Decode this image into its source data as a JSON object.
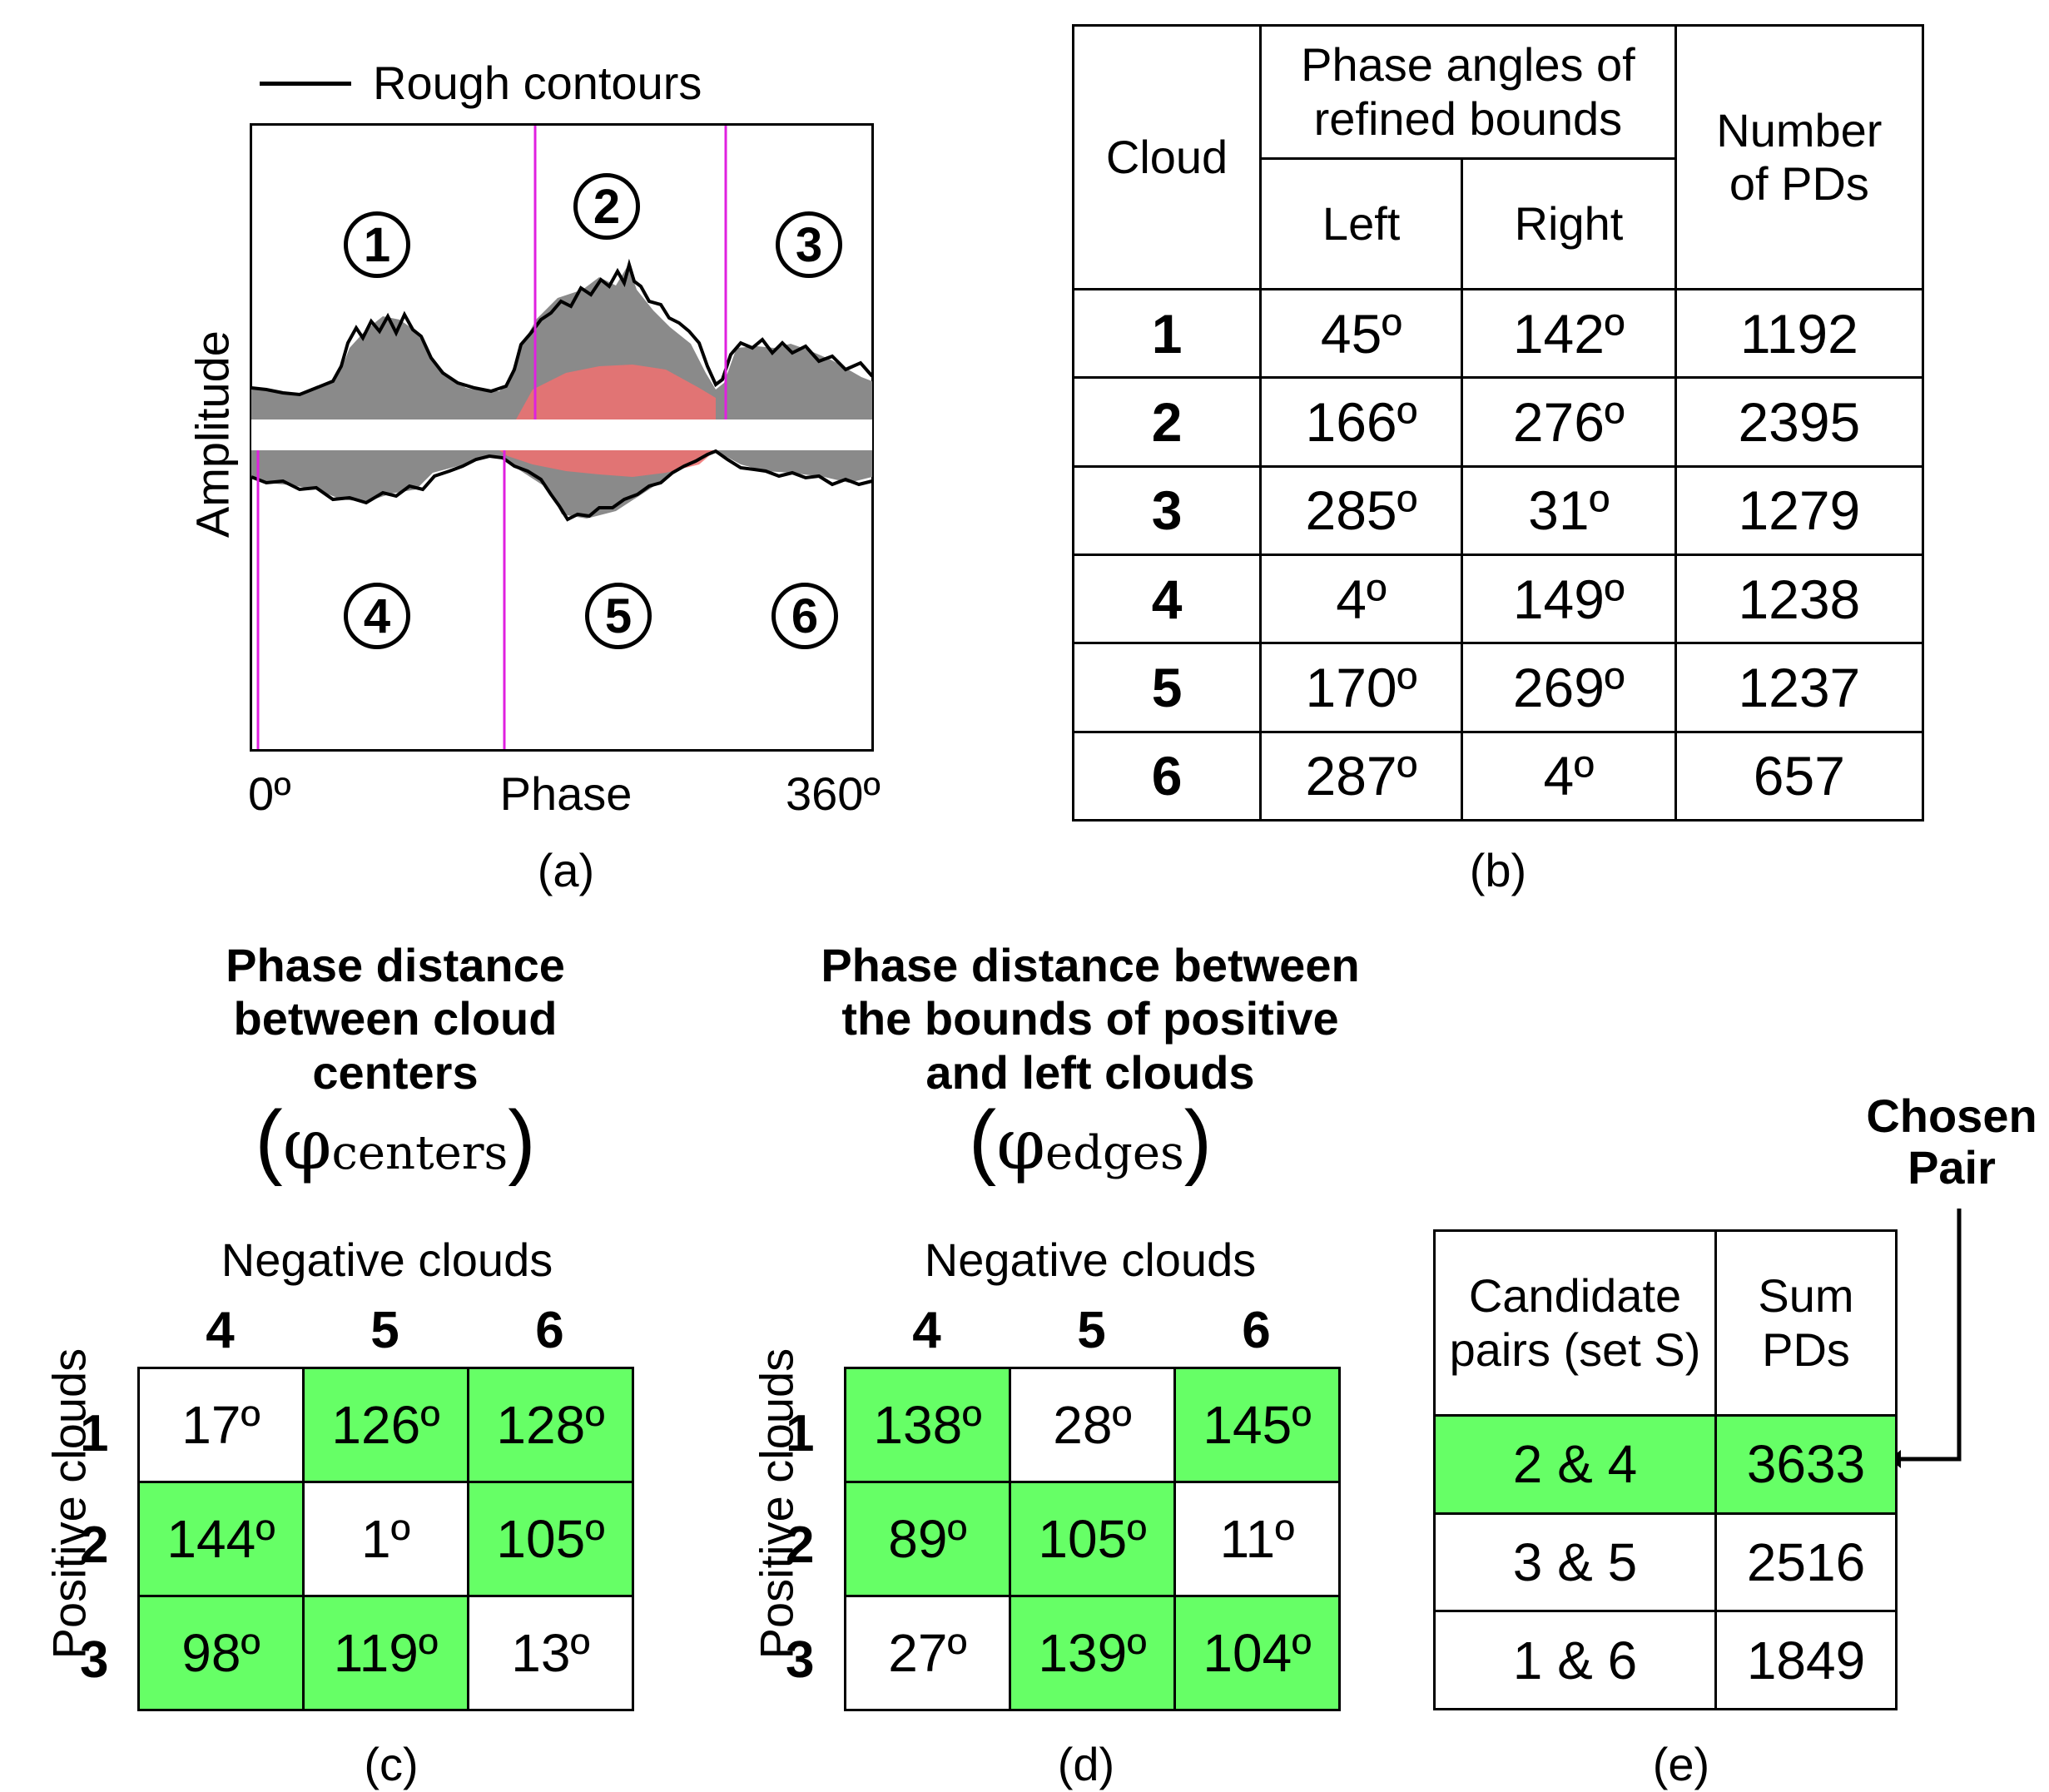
{
  "panel_a": {
    "legend_label": "Rough contours",
    "ylabel": "Amplitude",
    "xlabel": "Phase",
    "x_start": "0º",
    "x_end": "360º",
    "caption": "(a)",
    "cloud_numbers": [
      "1",
      "2",
      "3",
      "4",
      "5",
      "6"
    ]
  },
  "panel_b": {
    "caption": "(b)",
    "header_cloud": "Cloud",
    "header_phase": "Phase angles of refined bounds",
    "header_left": "Left",
    "header_right": "Right",
    "header_pds": "Number of PDs",
    "rows": [
      {
        "cloud": "1",
        "left": "45º",
        "right": "142º",
        "pds": "1192"
      },
      {
        "cloud": "2",
        "left": "166º",
        "right": "276º",
        "pds": "2395"
      },
      {
        "cloud": "3",
        "left": "285º",
        "right": "31º",
        "pds": "1279"
      },
      {
        "cloud": "4",
        "left": "4º",
        "right": "149º",
        "pds": "1238"
      },
      {
        "cloud": "5",
        "left": "170º",
        "right": "269º",
        "pds": "1237"
      },
      {
        "cloud": "6",
        "left": "287º",
        "right": "4º",
        "pds": "657"
      }
    ]
  },
  "panel_c": {
    "caption": "(c)",
    "title": "Phase distance between cloud centers",
    "phi": "φ",
    "phi_sub": "centers",
    "neg_label": "Negative clouds",
    "pos_label": "Positive clouds",
    "col_heads": [
      "4",
      "5",
      "6"
    ],
    "row_heads": [
      "1",
      "2",
      "3"
    ],
    "cells": [
      [
        "17º",
        "126º",
        "128º"
      ],
      [
        "144º",
        "1º",
        "105º"
      ],
      [
        "98º",
        "119º",
        "13º"
      ]
    ]
  },
  "panel_d": {
    "caption": "(d)",
    "title": "Phase distance between the bounds of positive and left clouds",
    "phi": "φ",
    "phi_sub": "edges",
    "neg_label": "Negative clouds",
    "pos_label": "Positive clouds",
    "col_heads": [
      "4",
      "5",
      "6"
    ],
    "row_heads": [
      "1",
      "2",
      "3"
    ],
    "cells": [
      [
        "138º",
        "28º",
        "145º"
      ],
      [
        "89º",
        "105º",
        "11º"
      ],
      [
        "27º",
        "139º",
        "104º"
      ]
    ]
  },
  "panel_e": {
    "caption": "(e)",
    "chosen_label": "Chosen Pair",
    "header_pairs": "Candidate pairs (set S)",
    "header_sum": "Sum PDs",
    "rows": [
      {
        "pair": "2 & 4",
        "sum": "3633"
      },
      {
        "pair": "3 & 5",
        "sum": "2516"
      },
      {
        "pair": "1 & 6",
        "sum": "1849"
      }
    ]
  },
  "colors": {
    "highlight": "#66ff66",
    "boundary_line": "#e020e0",
    "scatter_gray": "#8a8a8a",
    "scatter_red": "#f07070"
  }
}
